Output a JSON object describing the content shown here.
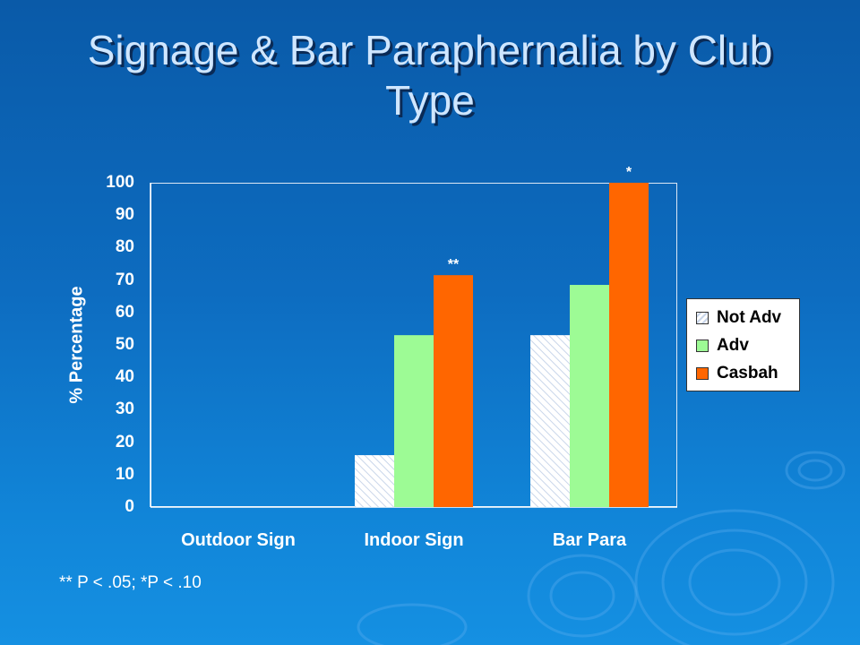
{
  "slide": {
    "title": "Signage & Bar Paraphernalia by Club Type",
    "footnote": "** P < .05; *P < .10"
  },
  "colors": {
    "not_adv": "#ffffff",
    "adv": "#9dfb95",
    "casbah": "#ff6600",
    "background": "#0d6cc0"
  },
  "chart_data": {
    "type": "bar",
    "title": "",
    "xlabel": "",
    "ylabel": "% Percentage",
    "ylim": [
      0,
      100
    ],
    "yticks": [
      "0",
      "10",
      "20",
      "30",
      "40",
      "50",
      "60",
      "70",
      "80",
      "90",
      "100"
    ],
    "categories": [
      "Outdoor Sign",
      "Indoor Sign",
      "Bar Para"
    ],
    "series": [
      {
        "name": "Not Adv",
        "values": [
          0,
          16,
          53
        ]
      },
      {
        "name": "Adv",
        "values": [
          0,
          53,
          68.5
        ]
      },
      {
        "name": "Casbah",
        "values": [
          0,
          71.5,
          100
        ]
      }
    ],
    "annotations": [
      {
        "category": "Indoor Sign",
        "series": "Casbah",
        "text": "**"
      },
      {
        "category": "Bar Para",
        "series": "Casbah",
        "text": "*"
      }
    ],
    "legend_position": "right",
    "grid": false
  }
}
